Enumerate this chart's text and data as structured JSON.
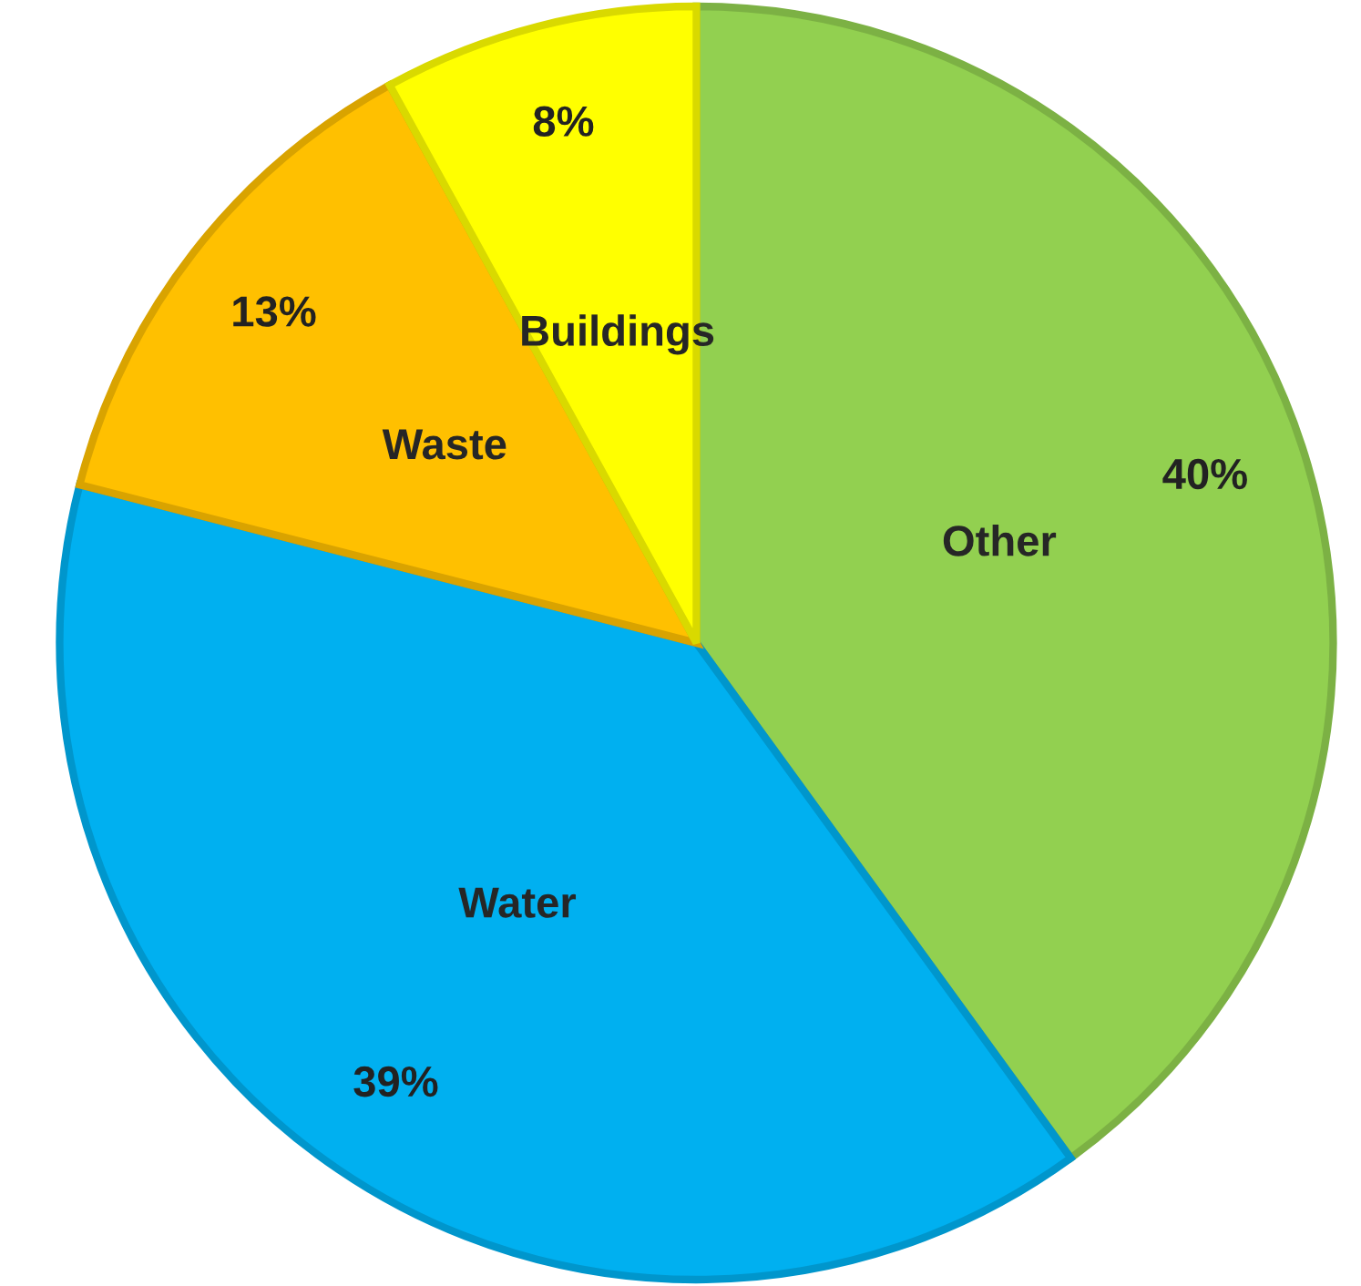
{
  "chart_data": {
    "type": "pie",
    "categories": [
      "Other",
      "Water",
      "Waste",
      "Buildings"
    ],
    "values": [
      40,
      39,
      13,
      8
    ],
    "value_labels": [
      "40%",
      "39%",
      "13%",
      "8%"
    ],
    "colors": [
      "#92d050",
      "#00b0f0",
      "#ffc000",
      "#ffff00"
    ]
  }
}
